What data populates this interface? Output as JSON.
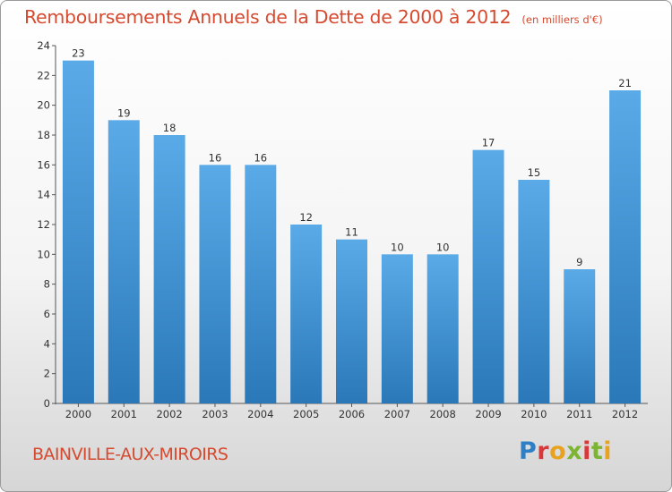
{
  "header": {
    "title": "Remboursements Annuels de la Dette de 2000 à 2012",
    "unit": "(en milliers d'€)"
  },
  "footer": {
    "town": "BAINVILLE-AUX-MIROIRS",
    "logo": "Proxiti"
  },
  "colors": {
    "title": "#d64a30",
    "bar_light": "#5aaae8",
    "bar_dark": "#2a78b8"
  },
  "chart_data": {
    "type": "bar",
    "categories": [
      "2000",
      "2001",
      "2002",
      "2003",
      "2004",
      "2005",
      "2006",
      "2007",
      "2008",
      "2009",
      "2010",
      "2011",
      "2012"
    ],
    "values": [
      23,
      19,
      18,
      16,
      16,
      12,
      11,
      10,
      10,
      17,
      15,
      9,
      21
    ],
    "ylim": [
      0,
      24
    ],
    "yticks": [
      0,
      2,
      4,
      6,
      8,
      10,
      12,
      14,
      16,
      18,
      20,
      22,
      24
    ],
    "grid": false,
    "data_labels": true
  }
}
